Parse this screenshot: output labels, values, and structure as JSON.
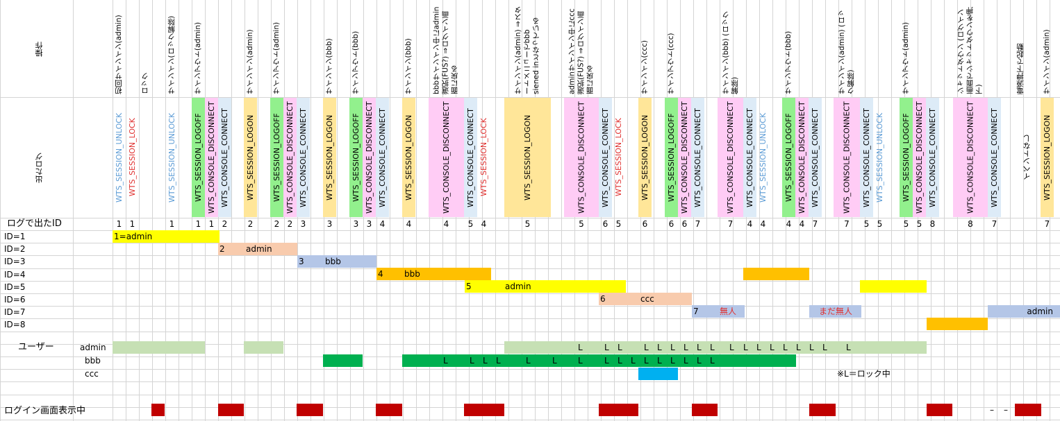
{
  "headers": {
    "op": "操作",
    "log": "出たログ",
    "id_row": "ログで出たID"
  },
  "operations": [
    {
      "text": "初回サインイン(admin)"
    },
    {
      "text": "ロック"
    },
    {
      "text": "サインイン(ロック解除)"
    },
    {
      "text": "サインアウト(admin)"
    },
    {
      "text": "サインイン(admin)"
    },
    {
      "text": "サインアウト(admin)"
    },
    {
      "text": "サインイン(bbb)"
    },
    {
      "text": "サインアウト(bbb)"
    },
    {
      "text": "サインイン(bbb)"
    },
    {
      "text": "bbbサインイン中にadmin 選択(FUS?) ⇒ログイン画面に戻る"
    },
    {
      "text": "サインイン(admin) ⇒スタートメニューでbbb siened inとなっている"
    },
    {
      "text": "adminサインイン中にccc 選択(FUS?) ⇒ログイン画面に戻る"
    },
    {
      "text": "サインイン(ccc)"
    },
    {
      "text": "サインアウト(ccc)"
    },
    {
      "text": "サインイン(bbb) (ロック解除)"
    },
    {
      "text": "サインアウト(bbb)"
    },
    {
      "text": "サインイン(admin) (ロック解除)"
    },
    {
      "text": "サインアウト(admin)"
    },
    {
      "text": "シャットダウン (ログイン画面でシャットダウンを押下)"
    },
    {
      "text": "電源押下で起動"
    },
    {
      "text": "サインイン(admin)"
    }
  ],
  "logs": [
    {
      "text": "WTS_SESSION_UNLOCK",
      "id": "1"
    },
    {
      "text": "WTS_SESSION_LOCK",
      "id": "1"
    },
    {
      "text": "WTS_SESSION_UNLOCK",
      "id": "1"
    },
    {
      "text": "WTS_SESSION_LOGOFF",
      "id": "1"
    },
    {
      "text": "WTS_CONSOLE_DISCONNECT",
      "id": "1"
    },
    {
      "text": "WTS_CONSOLE_CONNECT",
      "id": "2"
    },
    {
      "text": "WTS_SESSION_LOGON",
      "id": "2"
    },
    {
      "text": "WTS_SESSION_LOGOFF",
      "id": "2"
    },
    {
      "text": "WTS_CONSOLE_DISCONNECT",
      "id": "2"
    },
    {
      "text": "WTS_CONSOLE_CONNECT",
      "id": "3"
    },
    {
      "text": "WTS_SESSION_LOGON",
      "id": "3"
    },
    {
      "text": "WTS_SESSION_LOGOFF",
      "id": "3"
    },
    {
      "text": "WTS_CONSOLE_DISCONNECT",
      "id": "3"
    },
    {
      "text": "WTS_CONSOLE_CONNECT",
      "id": "4"
    },
    {
      "text": "WTS_SESSION_LOGON",
      "id": "4"
    },
    {
      "text": "WTS_CONSOLE_DISCONNECT",
      "id": "4"
    },
    {
      "text": "WTS_CONSOLE_CONNECT",
      "id": "5"
    },
    {
      "text": "WTS_SESSION_LOCK",
      "id": "4"
    },
    {
      "text": "WTS_SESSION_LOGON",
      "id": "5"
    },
    {
      "text": "WTS_CONSOLE_DISCONNECT",
      "id": "5"
    },
    {
      "text": "WTS_CONSOLE_CONNECT",
      "id": "6"
    },
    {
      "text": "WTS_SESSION_LOCK",
      "id": "5"
    },
    {
      "text": "WTS_SESSION_LOGON",
      "id": "6"
    },
    {
      "text": "WTS_SESSION_LOGOFF",
      "id": "6"
    },
    {
      "text": "WTS_CONSOLE_DISCONNECT",
      "id": "6"
    },
    {
      "text": "WTS_CONSOLE_CONNECT",
      "id": "7"
    },
    {
      "text": "WTS_CONSOLE_DISCONNECT",
      "id": "7"
    },
    {
      "text": "WTS_CONSOLE_CONNECT",
      "id": "4"
    },
    {
      "text": "WTS_SESSION_UNLOCK",
      "id": "4"
    },
    {
      "text": "WTS_SESSION_LOGOFF",
      "id": "4"
    },
    {
      "text": "WTS_CONSOLE_DISCONNECT",
      "id": "4"
    },
    {
      "text": "WTS_CONSOLE_CONNECT",
      "id": "7"
    },
    {
      "text": "WTS_CONSOLE_DISCONNECT",
      "id": "7"
    },
    {
      "text": "WTS_CONSOLE_CONNECT",
      "id": "5"
    },
    {
      "text": "WTS_SESSION_UNLOCK",
      "id": "5"
    },
    {
      "text": "WTS_SESSION_LOGOFF",
      "id": "5"
    },
    {
      "text": "WTS_CONSOLE_DISCONNECT",
      "id": "5"
    },
    {
      "text": "WTS_CONSOLE_CONNECT",
      "id": "8"
    },
    {
      "text": "WTS_CONSOLE_DISCONNECT",
      "id": "8"
    },
    {
      "text": "WTS_CONSOLE_CONNECT",
      "id": "7"
    },
    {
      "text": "イベントなし",
      "id": ""
    },
    {
      "text": "WTS_SESSION_LOGON",
      "id": "7"
    }
  ],
  "log_colors": {
    "LOGON": "#ffe699",
    "LOGOFF": "#92f08d",
    "DISCONNECT": "#ffccf5",
    "CONNECT": "#ddebf7",
    "UNLOCK_text": "#5b9bd5",
    "LOCK_text": "#e0302f"
  },
  "id_rows": [
    {
      "label": "ID=1"
    },
    {
      "label": "ID=2"
    },
    {
      "label": "ID=3"
    },
    {
      "label": "ID=4"
    },
    {
      "label": "ID=5"
    },
    {
      "label": "ID=6"
    },
    {
      "label": "ID=7"
    },
    {
      "label": "ID=8"
    }
  ],
  "bars": {
    "id1": "1=admin",
    "id2_num": "2",
    "id2_user": "admin",
    "id3_num": "3",
    "id3_user": "bbb",
    "id4_num": "4",
    "id4_user": "bbb",
    "id5_num": "5",
    "id5_user": "admin",
    "id6_num": "6",
    "id6_user": "ccc",
    "id7_num": "7",
    "id7_note": "無人",
    "id7_note2": "まだ無人",
    "id7_user": "admin"
  },
  "users": {
    "section": "ユーザー",
    "admin": "admin",
    "bbb": "bbb",
    "ccc": "ccc",
    "lock_mark": "L"
  },
  "note": "※L＝ロック中",
  "login_screen": "ログイン画面表示中",
  "dash": "–"
}
